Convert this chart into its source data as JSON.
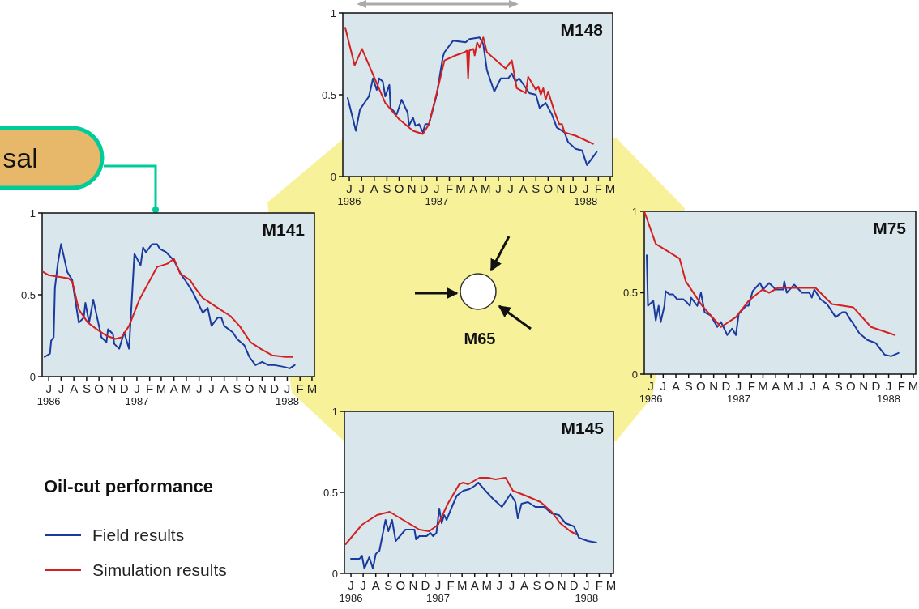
{
  "chart_data": [
    {
      "type": "line",
      "title": "M148",
      "xlim": [
        "1986-05-16",
        "1988-03-07"
      ],
      "ylim": [
        0,
        1
      ],
      "yticks": [
        0,
        0.5,
        1
      ],
      "xticks": [
        {
          "value": "1986-06",
          "label": "J\n1986"
        },
        {
          "value": "1986-07",
          "label": "J"
        },
        {
          "value": "1986-08",
          "label": "A"
        },
        {
          "value": "1986-09",
          "label": "S"
        },
        {
          "value": "1986-10",
          "label": "O"
        },
        {
          "value": "1986-11",
          "label": "N"
        },
        {
          "value": "1986-12",
          "label": "D"
        },
        {
          "value": "1987-01",
          "label": "J\n1987"
        },
        {
          "value": "1987-02",
          "label": "F"
        },
        {
          "value": "1987-03",
          "label": "M"
        },
        {
          "value": "1987-04",
          "label": "A"
        },
        {
          "value": "1987-05",
          "label": "M"
        },
        {
          "value": "1987-06",
          "label": "J"
        },
        {
          "value": "1987-07",
          "label": "J"
        },
        {
          "value": "1987-08",
          "label": "A"
        },
        {
          "value": "1987-09",
          "label": "S"
        },
        {
          "value": "1987-10",
          "label": "O"
        },
        {
          "value": "1987-11",
          "label": "N"
        },
        {
          "value": "1987-12",
          "label": "D"
        },
        {
          "value": "1988-01",
          "label": "J\n1988"
        },
        {
          "value": "1988-02",
          "label": "F"
        },
        {
          "value": "1988-03",
          "label": "M"
        }
      ],
      "series": [
        {
          "color": "#1a3aa0",
          "x": [
            "1986-05-28",
            "1986-06-17",
            "1986-06-27",
            "1986-07-19",
            "1986-07-29",
            "1986-08-07",
            "1986-08-13",
            "1986-08-22",
            "1986-08-28",
            "1986-09-07",
            "1986-09-10",
            "1986-09-25",
            "1986-10-07",
            "1986-10-22",
            "1986-10-25",
            "1986-11-04",
            "1986-11-10",
            "1986-11-19",
            "1986-11-28",
            "1986-12-04",
            "1986-12-13",
            "1987-01-01",
            "1987-01-16",
            "1987-01-20",
            "1987-02-10",
            "1987-03-13",
            "1987-03-22",
            "1987-04-16",
            "1987-04-25",
            "1987-05-04",
            "1987-05-22",
            "1987-06-07",
            "1987-06-25",
            "1987-07-04",
            "1987-07-13",
            "1987-07-22",
            "1987-08-16",
            "1987-09-01",
            "1987-09-10",
            "1987-09-25",
            "1987-10-10",
            "1987-10-22",
            "1987-11-10",
            "1987-11-19",
            "1987-12-07",
            "1987-12-23",
            "1988-01-04",
            "1988-01-28"
          ],
          "values": [
            0.48,
            0.28,
            0.41,
            0.49,
            0.6,
            0.53,
            0.6,
            0.58,
            0.49,
            0.56,
            0.42,
            0.38,
            0.47,
            0.39,
            0.31,
            0.36,
            0.31,
            0.32,
            0.27,
            0.32,
            0.32,
            0.5,
            0.73,
            0.76,
            0.83,
            0.82,
            0.84,
            0.85,
            0.81,
            0.65,
            0.52,
            0.6,
            0.6,
            0.63,
            0.58,
            0.6,
            0.51,
            0.5,
            0.42,
            0.45,
            0.38,
            0.3,
            0.27,
            0.21,
            0.17,
            0.16,
            0.07,
            0.15
          ]
        },
        {
          "color": "#d42020",
          "x": [
            "1986-05-22",
            "1986-06-14",
            "1986-07-02",
            "1986-08-28",
            "1986-10-01",
            "1986-11-04",
            "1986-11-28",
            "1986-12-13",
            "1987-01-01",
            "1987-01-20",
            "1987-02-16",
            "1987-03-10",
            "1987-03-16",
            "1987-03-19",
            "1987-03-22",
            "1987-04-01",
            "1987-04-04",
            "1987-04-10",
            "1987-04-16",
            "1987-04-25",
            "1987-05-04",
            "1987-06-19",
            "1987-07-04",
            "1987-07-16",
            "1987-08-07",
            "1987-08-13",
            "1987-09-01",
            "1987-09-07",
            "1987-09-13",
            "1987-09-19",
            "1987-09-25",
            "1987-10-01",
            "1987-10-16",
            "1987-10-28",
            "1987-11-04",
            "1987-11-10",
            "1987-12-07",
            "1988-01-19"
          ],
          "values": [
            0.91,
            0.68,
            0.78,
            0.45,
            0.35,
            0.28,
            0.26,
            0.32,
            0.51,
            0.71,
            0.74,
            0.76,
            0.77,
            0.6,
            0.77,
            0.78,
            0.74,
            0.82,
            0.79,
            0.85,
            0.76,
            0.66,
            0.71,
            0.54,
            0.51,
            0.61,
            0.53,
            0.55,
            0.5,
            0.54,
            0.47,
            0.52,
            0.4,
            0.32,
            0.32,
            0.27,
            0.25,
            0.2
          ]
        }
      ]
    },
    {
      "type": "line",
      "title": "M141",
      "xlim": [
        "1986-05-16",
        "1988-03-07"
      ],
      "ylim": [
        0,
        1
      ],
      "yticks": [
        0,
        0.5,
        1
      ],
      "xticks": [
        {
          "value": "1986-06",
          "label": "J\n1986"
        },
        {
          "value": "1986-07",
          "label": "J"
        },
        {
          "value": "1986-08",
          "label": "A"
        },
        {
          "value": "1986-09",
          "label": "S"
        },
        {
          "value": "1986-10",
          "label": "O"
        },
        {
          "value": "1986-11",
          "label": "N"
        },
        {
          "value": "1986-12",
          "label": "D"
        },
        {
          "value": "1987-01",
          "label": "J\n1987"
        },
        {
          "value": "1987-02",
          "label": "F"
        },
        {
          "value": "1987-03",
          "label": "M"
        },
        {
          "value": "1987-04",
          "label": "A"
        },
        {
          "value": "1987-05",
          "label": "M"
        },
        {
          "value": "1987-06",
          "label": "J"
        },
        {
          "value": "1987-07",
          "label": "J"
        },
        {
          "value": "1987-08",
          "label": "A"
        },
        {
          "value": "1987-09",
          "label": "S"
        },
        {
          "value": "1987-10",
          "label": "O"
        },
        {
          "value": "1987-11",
          "label": "N"
        },
        {
          "value": "1987-12",
          "label": "D"
        },
        {
          "value": "1988-01",
          "label": "J\n1988"
        },
        {
          "value": "1988-02",
          "label": "F"
        },
        {
          "value": "1988-03",
          "label": "M"
        }
      ],
      "series": [
        {
          "color": "#1a3aa0",
          "x": [
            "1986-05-22",
            "1986-06-04",
            "1986-06-07",
            "1986-06-13",
            "1986-06-16",
            "1986-06-23",
            "1986-07-01",
            "1986-07-16",
            "1986-07-28",
            "1986-08-13",
            "1986-08-25",
            "1986-08-29",
            "1986-09-07",
            "1986-09-17",
            "1986-10-07",
            "1986-10-19",
            "1986-10-23",
            "1986-11-04",
            "1986-11-07",
            "1986-11-19",
            "1986-12-01",
            "1986-12-13",
            "1986-12-26",
            "1987-01-10",
            "1987-01-16",
            "1987-01-23",
            "1987-02-07",
            "1987-02-19",
            "1987-02-26",
            "1987-03-13",
            "1987-04-01",
            "1987-04-19",
            "1987-04-28",
            "1987-05-16",
            "1987-06-10",
            "1987-06-22",
            "1987-07-01",
            "1987-07-16",
            "1987-07-25",
            "1987-08-01",
            "1987-08-22",
            "1987-09-01",
            "1987-09-19",
            "1987-10-01",
            "1987-10-16",
            "1987-11-01",
            "1987-11-16",
            "1987-12-01",
            "1987-12-23",
            "1988-01-07",
            "1988-01-19"
          ],
          "values": [
            0.12,
            0.14,
            0.22,
            0.24,
            0.54,
            0.69,
            0.81,
            0.64,
            0.59,
            0.33,
            0.36,
            0.45,
            0.33,
            0.47,
            0.24,
            0.21,
            0.29,
            0.26,
            0.2,
            0.17,
            0.27,
            0.17,
            0.75,
            0.68,
            0.79,
            0.76,
            0.81,
            0.81,
            0.78,
            0.76,
            0.71,
            0.62,
            0.59,
            0.52,
            0.39,
            0.42,
            0.31,
            0.36,
            0.36,
            0.31,
            0.27,
            0.23,
            0.19,
            0.12,
            0.07,
            0.09,
            0.07,
            0.07,
            0.06,
            0.05,
            0.07
          ]
        },
        {
          "color": "#d42020",
          "x": [
            "1986-05-18",
            "1986-06-01",
            "1986-07-19",
            "1986-07-28",
            "1986-08-13",
            "1986-09-04",
            "1986-09-25",
            "1986-10-19",
            "1986-11-10",
            "1986-11-25",
            "1986-12-13",
            "1987-01-07",
            "1987-02-04",
            "1987-02-19",
            "1987-03-16",
            "1987-04-01",
            "1987-04-16",
            "1987-05-10",
            "1987-05-23",
            "1987-06-10",
            "1987-07-16",
            "1987-08-16",
            "1987-09-07",
            "1987-10-04",
            "1987-10-28",
            "1987-11-25",
            "1987-12-28",
            "1988-01-13"
          ],
          "values": [
            0.64,
            0.62,
            0.6,
            0.58,
            0.41,
            0.33,
            0.29,
            0.25,
            0.23,
            0.24,
            0.31,
            0.47,
            0.6,
            0.67,
            0.69,
            0.72,
            0.63,
            0.59,
            0.54,
            0.48,
            0.42,
            0.37,
            0.31,
            0.21,
            0.17,
            0.13,
            0.12,
            0.12
          ]
        }
      ]
    },
    {
      "type": "line",
      "title": "M75",
      "xlim": [
        "1986-05-16",
        "1988-03-07"
      ],
      "ylim": [
        0,
        1
      ],
      "yticks": [
        0,
        0.5,
        1
      ],
      "xticks": [
        {
          "value": "1986-06",
          "label": "J\n1986"
        },
        {
          "value": "1986-07",
          "label": "J"
        },
        {
          "value": "1986-08",
          "label": "A"
        },
        {
          "value": "1986-09",
          "label": "S"
        },
        {
          "value": "1986-10",
          "label": "O"
        },
        {
          "value": "1986-11",
          "label": "N"
        },
        {
          "value": "1986-12",
          "label": "D"
        },
        {
          "value": "1987-01",
          "label": "J\n1987"
        },
        {
          "value": "1987-02",
          "label": "F"
        },
        {
          "value": "1987-03",
          "label": "M"
        },
        {
          "value": "1987-04",
          "label": "A"
        },
        {
          "value": "1987-05",
          "label": "M"
        },
        {
          "value": "1987-06",
          "label": "J"
        },
        {
          "value": "1987-07",
          "label": "J"
        },
        {
          "value": "1987-08",
          "label": "A"
        },
        {
          "value": "1987-09",
          "label": "S"
        },
        {
          "value": "1987-10",
          "label": "O"
        },
        {
          "value": "1987-11",
          "label": "N"
        },
        {
          "value": "1987-12",
          "label": "D"
        },
        {
          "value": "1988-01",
          "label": "J\n1988"
        },
        {
          "value": "1988-02",
          "label": "F"
        },
        {
          "value": "1988-03",
          "label": "M"
        }
      ],
      "series": [
        {
          "color": "#1a3aa0",
          "x": [
            "1986-05-22",
            "1986-05-25",
            "1986-06-07",
            "1986-06-13",
            "1986-06-20",
            "1986-06-25",
            "1986-07-04",
            "1986-07-07",
            "1986-07-16",
            "1986-07-25",
            "1986-08-04",
            "1986-08-19",
            "1986-08-28",
            "1986-09-04",
            "1986-09-07",
            "1986-09-22",
            "1986-10-01",
            "1986-10-10",
            "1986-10-25",
            "1986-11-10",
            "1986-11-19",
            "1986-12-04",
            "1986-12-16",
            "1986-12-25",
            "1987-01-01",
            "1987-01-19",
            "1987-01-25",
            "1987-02-04",
            "1987-02-22",
            "1987-03-01",
            "1987-03-16",
            "1987-04-01",
            "1987-04-19",
            "1987-04-22",
            "1987-04-28",
            "1987-05-16",
            "1987-06-04",
            "1987-06-22",
            "1987-06-28",
            "1987-07-04",
            "1987-07-19",
            "1987-08-04",
            "1987-08-25",
            "1987-09-10",
            "1987-09-19",
            "1987-10-01",
            "1987-10-07",
            "1987-10-22",
            "1987-11-10",
            "1987-12-01",
            "1987-12-13",
            "1987-12-22",
            "1988-01-07",
            "1988-01-25"
          ],
          "values": [
            0.73,
            0.42,
            0.45,
            0.33,
            0.42,
            0.32,
            0.42,
            0.51,
            0.49,
            0.49,
            0.46,
            0.46,
            0.44,
            0.42,
            0.47,
            0.42,
            0.5,
            0.38,
            0.36,
            0.29,
            0.32,
            0.24,
            0.28,
            0.24,
            0.37,
            0.42,
            0.42,
            0.51,
            0.56,
            0.52,
            0.56,
            0.52,
            0.52,
            0.57,
            0.5,
            0.55,
            0.5,
            0.5,
            0.47,
            0.52,
            0.46,
            0.43,
            0.35,
            0.38,
            0.38,
            0.33,
            0.31,
            0.25,
            0.21,
            0.19,
            0.15,
            0.12,
            0.11,
            0.13
          ]
        },
        {
          "color": "#d42020",
          "x": [
            "1986-05-16",
            "1986-06-13",
            "1986-08-10",
            "1986-08-25",
            "1986-10-04",
            "1986-11-19",
            "1986-12-25",
            "1987-01-25",
            "1987-02-28",
            "1987-03-16",
            "1987-04-07",
            "1987-05-28",
            "1987-07-07",
            "1987-08-16",
            "1987-10-07",
            "1987-11-19",
            "1988-01-16"
          ],
          "values": [
            1,
            0.8,
            0.71,
            0.57,
            0.42,
            0.29,
            0.35,
            0.45,
            0.52,
            0.5,
            0.53,
            0.53,
            0.53,
            0.43,
            0.41,
            0.29,
            0.24
          ]
        }
      ]
    },
    {
      "type": "line",
      "title": "M145",
      "xlim": [
        "1986-05-16",
        "1988-03-07"
      ],
      "ylim": [
        0,
        1
      ],
      "yticks": [
        0,
        0.5,
        1
      ],
      "legend": "left",
      "legend_title": "Oil-cut performance",
      "xticks": [
        {
          "value": "1986-06",
          "label": "J\n1986"
        },
        {
          "value": "1986-07",
          "label": "J"
        },
        {
          "value": "1986-08",
          "label": "A"
        },
        {
          "value": "1986-09",
          "label": "S"
        },
        {
          "value": "1986-10",
          "label": "O"
        },
        {
          "value": "1986-11",
          "label": "N"
        },
        {
          "value": "1986-12",
          "label": "D"
        },
        {
          "value": "1987-01",
          "label": "J\n1987"
        },
        {
          "value": "1987-02",
          "label": "F"
        },
        {
          "value": "1987-03",
          "label": "M"
        },
        {
          "value": "1987-04",
          "label": "A"
        },
        {
          "value": "1987-05",
          "label": "M"
        },
        {
          "value": "1987-06",
          "label": "J"
        },
        {
          "value": "1987-07",
          "label": "J"
        },
        {
          "value": "1987-08",
          "label": "A"
        },
        {
          "value": "1987-09",
          "label": "S"
        },
        {
          "value": "1987-10",
          "label": "O"
        },
        {
          "value": "1987-11",
          "label": "N"
        },
        {
          "value": "1987-12",
          "label": "D"
        },
        {
          "value": "1988-01",
          "label": "J\n1988"
        },
        {
          "value": "1988-02",
          "label": "F"
        },
        {
          "value": "1988-03",
          "label": "M"
        }
      ],
      "series": [
        {
          "name": "Field results",
          "color": "#1a3aa0",
          "x": [
            "1986-06-01",
            "1986-06-22",
            "1986-06-28",
            "1986-07-04",
            "1986-07-16",
            "1986-07-25",
            "1986-08-01",
            "1986-08-10",
            "1986-08-25",
            "1986-09-01",
            "1986-09-10",
            "1986-09-19",
            "1986-10-13",
            "1986-11-04",
            "1986-11-08",
            "1986-11-16",
            "1986-12-04",
            "1986-12-13",
            "1986-12-20",
            "1986-12-28",
            "1987-01-04",
            "1987-01-10",
            "1987-01-16",
            "1987-01-22",
            "1987-02-04",
            "1987-02-16",
            "1987-03-04",
            "1987-03-19",
            "1987-04-01",
            "1987-04-10",
            "1987-05-01",
            "1987-05-16",
            "1987-06-07",
            "1987-06-28",
            "1987-07-10",
            "1987-07-16",
            "1987-07-25",
            "1987-08-10",
            "1987-08-28",
            "1987-09-19",
            "1987-10-07",
            "1987-10-25",
            "1987-11-10",
            "1987-12-01",
            "1987-12-13",
            "1988-01-04",
            "1988-01-25"
          ],
          "values": [
            0.09,
            0.09,
            0.11,
            0.03,
            0.1,
            0.03,
            0.12,
            0.14,
            0.33,
            0.26,
            0.33,
            0.2,
            0.27,
            0.27,
            0.21,
            0.23,
            0.23,
            0.25,
            0.23,
            0.25,
            0.4,
            0.31,
            0.36,
            0.33,
            0.41,
            0.48,
            0.51,
            0.52,
            0.54,
            0.56,
            0.5,
            0.46,
            0.41,
            0.49,
            0.44,
            0.34,
            0.43,
            0.44,
            0.41,
            0.41,
            0.37,
            0.36,
            0.31,
            0.29,
            0.22,
            0.2,
            0.19
          ]
        },
        {
          "name": "Simulation results",
          "color": "#d42020",
          "x": [
            "1986-05-19",
            "1986-06-28",
            "1986-08-04",
            "1986-09-04",
            "1986-10-07",
            "1986-11-16",
            "1986-12-10",
            "1987-01-01",
            "1987-01-25",
            "1987-02-22",
            "1987-03-04",
            "1987-03-16",
            "1987-04-13",
            "1987-05-04",
            "1987-05-22",
            "1987-06-16",
            "1987-07-04",
            "1987-08-04",
            "1987-09-10",
            "1987-10-07",
            "1987-10-28",
            "1987-11-22",
            "1987-12-07"
          ],
          "values": [
            0.18,
            0.3,
            0.36,
            0.38,
            0.33,
            0.27,
            0.26,
            0.3,
            0.43,
            0.55,
            0.56,
            0.55,
            0.59,
            0.59,
            0.58,
            0.59,
            0.51,
            0.48,
            0.44,
            0.38,
            0.31,
            0.26,
            0.24
          ]
        }
      ]
    },
    {
      "type": "other",
      "annotations": [
        "M65",
        "sal"
      ]
    }
  ]
}
